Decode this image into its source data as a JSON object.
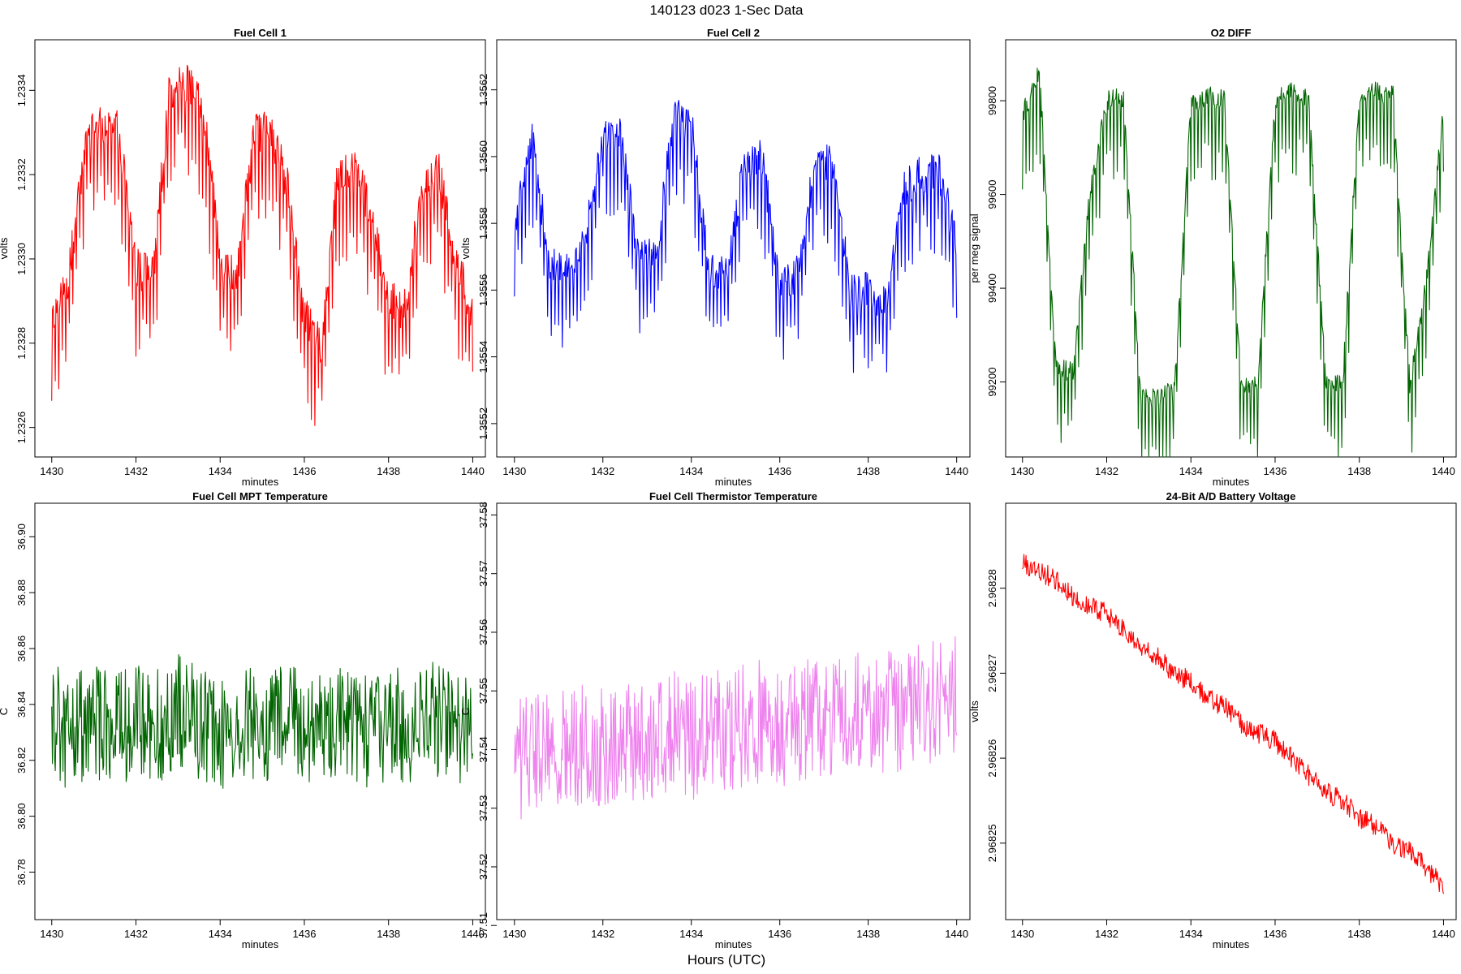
{
  "figure": {
    "title": "140123   d023   1-Sec Data",
    "xlabel": "Hours (UTC)"
  },
  "chart_data": [
    {
      "type": "line",
      "title": "Fuel Cell 1",
      "xlabel": "minutes",
      "ylabel": "volts",
      "color": "#ff0000",
      "xlim": [
        1429.6,
        1440.3
      ],
      "ylim": [
        1.23253,
        1.23352
      ],
      "x_ticks": [
        "1430",
        "1432",
        "1434",
        "1436",
        "1438",
        "1440"
      ],
      "y_ticks": [
        "1.2326",
        "1.2328",
        "1.2330",
        "1.2332",
        "1.2334"
      ],
      "x": [
        1430.0,
        1430.4,
        1430.8,
        1431.2,
        1431.6,
        1432.0,
        1432.4,
        1432.8,
        1433.2,
        1433.6,
        1434.0,
        1434.4,
        1434.8,
        1435.2,
        1435.6,
        1436.0,
        1436.4,
        1436.8,
        1437.2,
        1437.6,
        1438.0,
        1438.4,
        1438.8,
        1439.2,
        1439.6,
        1440.0
      ],
      "values": [
        1.23285,
        1.23295,
        1.23328,
        1.23332,
        1.2333,
        1.23298,
        1.23296,
        1.2334,
        1.23342,
        1.23335,
        1.233,
        1.23295,
        1.2333,
        1.2333,
        1.23318,
        1.23286,
        1.2328,
        1.2332,
        1.23322,
        1.2331,
        1.2329,
        1.23288,
        1.23318,
        1.2332,
        1.233,
        1.23287
      ]
    },
    {
      "type": "line",
      "title": "Fuel Cell 2",
      "xlabel": "minutes",
      "ylabel": "volts",
      "color": "#0000ff",
      "xlim": [
        1429.6,
        1440.3
      ],
      "ylim": [
        1.3551,
        1.35635
      ],
      "x_ticks": [
        "1430",
        "1432",
        "1434",
        "1436",
        "1438",
        "1440"
      ],
      "y_ticks": [
        "1.3552",
        "1.3554",
        "1.3556",
        "1.3558",
        "1.3560",
        "1.3562"
      ],
      "x": [
        1430.0,
        1430.4,
        1430.8,
        1431.2,
        1431.6,
        1432.0,
        1432.4,
        1432.8,
        1433.2,
        1433.6,
        1434.0,
        1434.4,
        1434.8,
        1435.2,
        1435.6,
        1436.0,
        1436.4,
        1436.8,
        1437.2,
        1437.6,
        1438.0,
        1438.4,
        1438.8,
        1439.2,
        1439.6,
        1440.0
      ],
      "values": [
        1.3558,
        1.35605,
        1.35568,
        1.35565,
        1.35575,
        1.35608,
        1.35606,
        1.3557,
        1.3557,
        1.35612,
        1.3561,
        1.35565,
        1.35565,
        1.35598,
        1.356,
        1.35562,
        1.35565,
        1.35598,
        1.35598,
        1.3556,
        1.3556,
        1.35555,
        1.3559,
        1.35595,
        1.35595,
        1.35575
      ]
    },
    {
      "type": "line",
      "title": "O2 DIFF",
      "xlabel": "minutes",
      "ylabel": "per meg signal",
      "color": "#006400",
      "xlim": [
        1429.6,
        1440.3
      ],
      "ylim": [
        99040,
        99930
      ],
      "x_ticks": [
        "1430",
        "1432",
        "1434",
        "1436",
        "1438",
        "1440"
      ],
      "y_ticks": [
        "99200",
        "99400",
        "99600",
        "99800"
      ],
      "x": [
        1430.0,
        1430.4,
        1430.8,
        1431.2,
        1431.6,
        1432.0,
        1432.4,
        1432.8,
        1433.2,
        1433.6,
        1434.0,
        1434.4,
        1434.8,
        1435.2,
        1435.6,
        1436.0,
        1436.4,
        1436.8,
        1437.2,
        1437.6,
        1438.0,
        1438.4,
        1438.8,
        1439.2,
        1439.6,
        1440.0
      ],
      "values": [
        99770,
        99860,
        99230,
        99220,
        99600,
        99800,
        99810,
        99170,
        99165,
        99180,
        99790,
        99810,
        99800,
        99190,
        99200,
        99800,
        99820,
        99800,
        99200,
        99190,
        99810,
        99820,
        99810,
        99190,
        99420,
        99780
      ]
    },
    {
      "type": "line",
      "title": "Fuel Cell MPT Temperature",
      "xlabel": "minutes",
      "ylabel": "C",
      "color": "#006400",
      "xlim": [
        1429.6,
        1440.3
      ],
      "ylim": [
        36.763,
        36.912
      ],
      "x_ticks": [
        "1430",
        "1432",
        "1434",
        "1436",
        "1438",
        "1440"
      ],
      "y_ticks": [
        "36.78",
        "36.80",
        "36.82",
        "36.84",
        "36.86",
        "36.88",
        "36.90"
      ],
      "x": [
        1430.0,
        1430.4,
        1430.8,
        1431.2,
        1431.6,
        1432.0,
        1432.4,
        1432.8,
        1433.2,
        1433.6,
        1434.0,
        1434.4,
        1434.8,
        1435.2,
        1435.6,
        1436.0,
        1436.4,
        1436.8,
        1437.2,
        1437.6,
        1438.0,
        1438.4,
        1438.8,
        1439.2,
        1439.6,
        1440.0
      ],
      "values": [
        36.835,
        36.83,
        36.833,
        36.834,
        36.832,
        36.835,
        36.83,
        36.836,
        36.838,
        36.832,
        36.83,
        36.834,
        36.833,
        36.832,
        36.835,
        36.83,
        36.832,
        36.834,
        36.833,
        36.83,
        36.834,
        36.832,
        36.833,
        36.835,
        36.83,
        36.832
      ]
    },
    {
      "type": "line",
      "title": "Fuel Cell Thermistor Temperature",
      "xlabel": "minutes",
      "ylabel": "C",
      "color": "#ee82ee",
      "xlim": [
        1429.6,
        1440.3
      ],
      "ylim": [
        37.511,
        37.582
      ],
      "x_ticks": [
        "1430",
        "1432",
        "1434",
        "1436",
        "1438",
        "1440"
      ],
      "y_ticks": [
        "37.51",
        "37.52",
        "37.53",
        "37.54",
        "37.55",
        "37.56",
        "37.57",
        "37.58"
      ],
      "x": [
        1430.0,
        1430.4,
        1430.8,
        1431.2,
        1431.6,
        1432.0,
        1432.4,
        1432.8,
        1433.2,
        1433.6,
        1434.0,
        1434.4,
        1434.8,
        1435.2,
        1435.6,
        1436.0,
        1436.4,
        1436.8,
        1437.2,
        1437.6,
        1438.0,
        1438.4,
        1438.8,
        1439.2,
        1439.6,
        1440.0
      ],
      "values": [
        37.538,
        37.54,
        37.539,
        37.54,
        37.541,
        37.541,
        37.542,
        37.541,
        37.542,
        37.543,
        37.542,
        37.543,
        37.543,
        37.544,
        37.545,
        37.544,
        37.545,
        37.545,
        37.546,
        37.546,
        37.547,
        37.546,
        37.547,
        37.548,
        37.548,
        37.549
      ]
    },
    {
      "type": "line",
      "title": "24-Bit A/D Battery Voltage",
      "xlabel": "minutes",
      "ylabel": "volts",
      "color": "#ff0000",
      "xlim": [
        1429.6,
        1440.3
      ],
      "ylim": [
        2.968241,
        2.96829
      ],
      "x_ticks": [
        "1430",
        "1432",
        "1434",
        "1436",
        "1438",
        "1440"
      ],
      "y_ticks": [
        "2.96825",
        "2.96826",
        "2.96827",
        "2.96828"
      ],
      "x": [
        1430.0,
        1430.4,
        1430.8,
        1431.2,
        1431.6,
        1432.0,
        1432.4,
        1432.8,
        1433.2,
        1433.6,
        1434.0,
        1434.4,
        1434.8,
        1435.2,
        1435.6,
        1436.0,
        1436.4,
        1436.8,
        1437.2,
        1437.6,
        1438.0,
        1438.4,
        1438.8,
        1439.2,
        1439.6,
        1440.0
      ],
      "values": [
        2.968283,
        2.968282,
        2.968281,
        2.968279,
        2.968278,
        2.968277,
        2.968275,
        2.968273,
        2.968272,
        2.96827,
        2.968269,
        2.968267,
        2.968266,
        2.968264,
        2.968263,
        2.968262,
        2.96826,
        2.968258,
        2.968256,
        2.968255,
        2.968253,
        2.968252,
        2.96825,
        2.968249,
        2.968247,
        2.968245
      ]
    }
  ]
}
